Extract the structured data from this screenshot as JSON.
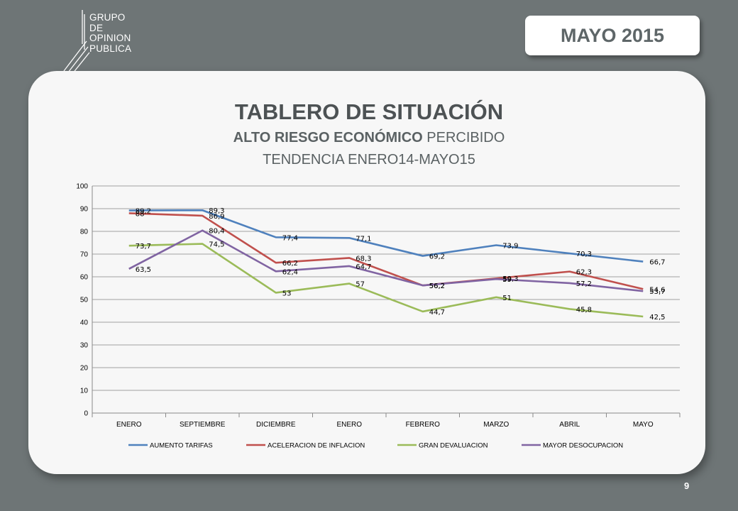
{
  "logo": {
    "line1": "GRUPO",
    "line2": "DE",
    "line3": "OPINION",
    "line4": "PUBLICA"
  },
  "badge": {
    "label": "MAYO 2015"
  },
  "title": {
    "main": "TABLERO DE SITUACIÓN",
    "sub_bold": "ALTO RIESGO ECONÓMICO",
    "sub_rest": " PERCIBIDO",
    "sub2": "TENDENCIA ENERO14-MAYO15"
  },
  "page_number": "9",
  "colors": {
    "aumento": "#4f81bd",
    "aceleracion": "#c0504d",
    "devaluacion": "#9bbb59",
    "desocupacion": "#8064a2"
  },
  "chart_data": {
    "type": "line",
    "categories": [
      "ENERO",
      "SEPTIEMBRE",
      "DICIEMBRE",
      "ENERO",
      "FEBRERO",
      "MARZO",
      "ABRIL",
      "MAYO"
    ],
    "ylim": [
      0,
      100
    ],
    "yticks": [
      0,
      10,
      20,
      30,
      40,
      50,
      60,
      70,
      80,
      90,
      100
    ],
    "grid": true,
    "legend_position": "bottom",
    "series": [
      {
        "name": "AUMENTO TARIFAS",
        "color": "#4f81bd",
        "values": [
          89.2,
          89.3,
          77.4,
          77.1,
          69.2,
          73.9,
          70.3,
          66.7
        ],
        "labels": [
          "89,2",
          "89,3",
          "77,4",
          "77,1",
          "69,2",
          "73,9",
          "70,3",
          "66,7"
        ]
      },
      {
        "name": "ACELERACION DE INFLACION",
        "color": "#c0504d",
        "values": [
          88,
          86.9,
          66.2,
          68.3,
          56.2,
          59.3,
          62.3,
          54.6
        ],
        "labels": [
          "88",
          "86,9",
          "66,2",
          "68,3",
          "56,2",
          "59,3",
          "62,3",
          "54,6"
        ]
      },
      {
        "name": "GRAN DEVALUACION",
        "color": "#9bbb59",
        "values": [
          73.7,
          74.5,
          53,
          57,
          44.7,
          51,
          45.8,
          42.5
        ],
        "labels": [
          "73,7",
          "74,5",
          "53",
          "57",
          "44,7",
          "51",
          "45,8",
          "42,5"
        ]
      },
      {
        "name": "MAYOR DESOCUPACION",
        "color": "#8064a2",
        "values": [
          63.5,
          80.4,
          62.4,
          64.7,
          56.2,
          59,
          57.2,
          53.7
        ],
        "labels": [
          "63,5",
          "80,4",
          "62,4",
          "64,7",
          "56,2",
          "59",
          "57,2",
          "53,7"
        ]
      }
    ]
  }
}
